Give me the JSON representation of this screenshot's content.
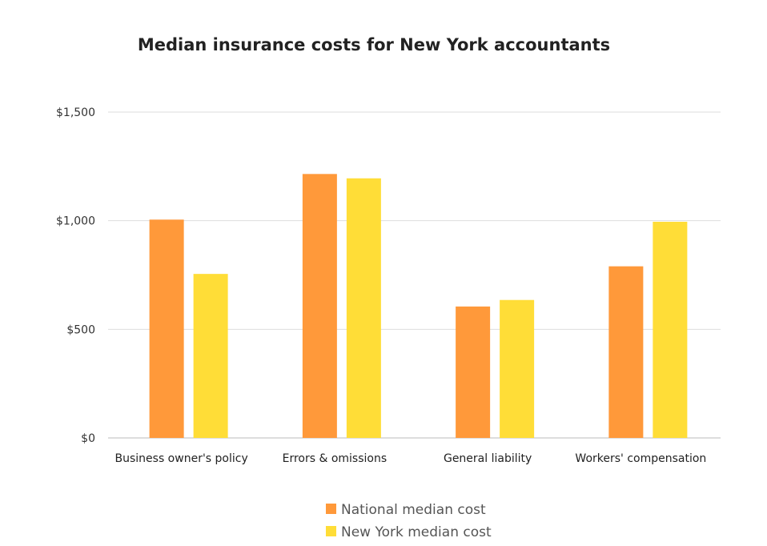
{
  "chart_data": {
    "type": "bar",
    "title": "Median insurance costs for New York accountants",
    "xlabel": "",
    "ylabel": "",
    "categories": [
      "Business owner's policy",
      "Errors & omissions",
      "General liability",
      "Workers' compensation"
    ],
    "series": [
      {
        "name": "National median cost",
        "color": "#FF993A",
        "values": [
          1005,
          1215,
          605,
          790
        ]
      },
      {
        "name": "New York median cost",
        "color": "#FFDD37",
        "values": [
          755,
          1195,
          635,
          995
        ]
      }
    ],
    "ylim": [
      0,
      1500
    ],
    "yticks": [
      0,
      500,
      1000,
      1500
    ],
    "ytick_labels": [
      "$0",
      "$500",
      "$1,000",
      "$1,500"
    ],
    "grid": true,
    "legend_position": "bottom"
  }
}
